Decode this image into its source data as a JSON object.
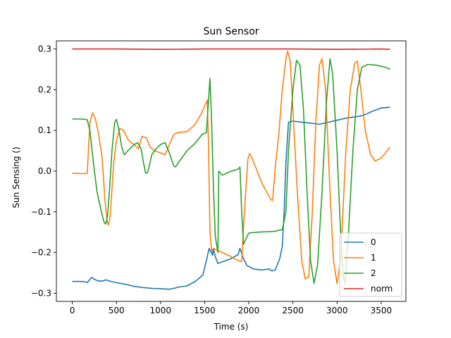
{
  "chart_data": {
    "type": "line",
    "title": "Sun Sensor",
    "xlabel": "Time (s)",
    "ylabel": "Sun Sensing ()",
    "xlim": [
      -180,
      3780
    ],
    "ylim": [
      -0.32,
      0.32
    ],
    "xticks": [
      0,
      500,
      1000,
      1500,
      2000,
      2500,
      3000,
      3500
    ],
    "yticks": [
      -0.3,
      -0.2,
      -0.1,
      0.0,
      0.1,
      0.2,
      0.3
    ],
    "xtick_labels": [
      "0",
      "500",
      "1000",
      "1500",
      "2000",
      "2500",
      "3000",
      "3500"
    ],
    "ytick_labels": [
      "−0.3",
      "−0.2",
      "−0.1",
      "0.0",
      "0.1",
      "0.2",
      "0.3"
    ],
    "grid": false,
    "legend_position": "lower-right",
    "series": [
      {
        "name": "0",
        "color": "#1f77b4",
        "points": [
          [
            0,
            -0.271
          ],
          [
            100,
            -0.271
          ],
          [
            150,
            -0.272
          ],
          [
            170,
            -0.274
          ],
          [
            200,
            -0.266
          ],
          [
            220,
            -0.261
          ],
          [
            250,
            -0.266
          ],
          [
            300,
            -0.27
          ],
          [
            350,
            -0.27
          ],
          [
            380,
            -0.267
          ],
          [
            420,
            -0.27
          ],
          [
            500,
            -0.274
          ],
          [
            600,
            -0.278
          ],
          [
            700,
            -0.283
          ],
          [
            800,
            -0.286
          ],
          [
            900,
            -0.288
          ],
          [
            1000,
            -0.289
          ],
          [
            1100,
            -0.29
          ],
          [
            1150,
            -0.288
          ],
          [
            1200,
            -0.285
          ],
          [
            1300,
            -0.282
          ],
          [
            1400,
            -0.27
          ],
          [
            1480,
            -0.255
          ],
          [
            1520,
            -0.22
          ],
          [
            1550,
            -0.19
          ],
          [
            1570,
            -0.198
          ],
          [
            1590,
            -0.207
          ],
          [
            1600,
            -0.19
          ],
          [
            1620,
            -0.21
          ],
          [
            1650,
            -0.227
          ],
          [
            1700,
            -0.223
          ],
          [
            1800,
            -0.215
          ],
          [
            1880,
            -0.205
          ],
          [
            1900,
            -0.19
          ],
          [
            1940,
            -0.215
          ],
          [
            1980,
            -0.232
          ],
          [
            2050,
            -0.24
          ],
          [
            2150,
            -0.243
          ],
          [
            2230,
            -0.24
          ],
          [
            2260,
            -0.245
          ],
          [
            2300,
            -0.243
          ],
          [
            2350,
            -0.215
          ],
          [
            2380,
            -0.185
          ],
          [
            2400,
            -0.1
          ],
          [
            2420,
            0.02
          ],
          [
            2450,
            0.12
          ],
          [
            2500,
            0.123
          ],
          [
            2600,
            0.12
          ],
          [
            2700,
            0.118
          ],
          [
            2800,
            0.115
          ],
          [
            2900,
            0.12
          ],
          [
            3000,
            0.125
          ],
          [
            3100,
            0.13
          ],
          [
            3200,
            0.133
          ],
          [
            3300,
            0.137
          ],
          [
            3400,
            0.147
          ],
          [
            3500,
            0.155
          ],
          [
            3600,
            0.157
          ]
        ]
      },
      {
        "name": "1",
        "color": "#ff7f0e",
        "points": [
          [
            0,
            -0.005
          ],
          [
            100,
            -0.006
          ],
          [
            150,
            -0.006
          ],
          [
            170,
            -0.005
          ],
          [
            200,
            0.12
          ],
          [
            230,
            0.143
          ],
          [
            260,
            0.13
          ],
          [
            300,
            0.09
          ],
          [
            340,
            0.03
          ],
          [
            370,
            -0.07
          ],
          [
            395,
            -0.123
          ],
          [
            410,
            -0.133
          ],
          [
            430,
            -0.11
          ],
          [
            470,
            0.02
          ],
          [
            500,
            0.075
          ],
          [
            540,
            0.105
          ],
          [
            580,
            0.1
          ],
          [
            640,
            0.075
          ],
          [
            700,
            0.065
          ],
          [
            750,
            0.055
          ],
          [
            790,
            0.085
          ],
          [
            840,
            0.082
          ],
          [
            880,
            0.06
          ],
          [
            930,
            0.05
          ],
          [
            1000,
            0.045
          ],
          [
            1050,
            0.04
          ],
          [
            1100,
            0.065
          ],
          [
            1150,
            0.09
          ],
          [
            1200,
            0.095
          ],
          [
            1300,
            0.097
          ],
          [
            1380,
            0.112
          ],
          [
            1420,
            0.125
          ],
          [
            1470,
            0.145
          ],
          [
            1510,
            0.165
          ],
          [
            1530,
            0.175
          ],
          [
            1545,
            0.05
          ],
          [
            1560,
            -0.15
          ],
          [
            1580,
            -0.197
          ],
          [
            1600,
            -0.19
          ],
          [
            1700,
            -0.2
          ],
          [
            1800,
            -0.21
          ],
          [
            1880,
            -0.22
          ],
          [
            1920,
            -0.222
          ],
          [
            1950,
            -0.1
          ],
          [
            1990,
            0.03
          ],
          [
            2010,
            0.043
          ],
          [
            2040,
            0.03
          ],
          [
            2150,
            -0.03
          ],
          [
            2250,
            -0.07
          ],
          [
            2270,
            -0.072
          ],
          [
            2300,
            0.01
          ],
          [
            2340,
            0.09
          ],
          [
            2380,
            0.2
          ],
          [
            2420,
            0.275
          ],
          [
            2440,
            0.295
          ],
          [
            2470,
            0.27
          ],
          [
            2500,
            0.15
          ],
          [
            2550,
            -0.05
          ],
          [
            2600,
            -0.22
          ],
          [
            2640,
            -0.265
          ],
          [
            2680,
            -0.26
          ],
          [
            2720,
            -0.1
          ],
          [
            2760,
            0.12
          ],
          [
            2800,
            0.26
          ],
          [
            2830,
            0.276
          ],
          [
            2870,
            0.2
          ],
          [
            2920,
            -0.05
          ],
          [
            2960,
            -0.22
          ],
          [
            3000,
            -0.276
          ],
          [
            3040,
            -0.22
          ],
          [
            3100,
            0.05
          ],
          [
            3150,
            0.2
          ],
          [
            3200,
            0.265
          ],
          [
            3230,
            0.27
          ],
          [
            3270,
            0.2
          ],
          [
            3320,
            0.1
          ],
          [
            3380,
            0.04
          ],
          [
            3430,
            0.025
          ],
          [
            3500,
            0.032
          ],
          [
            3550,
            0.045
          ],
          [
            3600,
            0.059
          ]
        ]
      },
      {
        "name": "2",
        "color": "#2ca02c",
        "points": [
          [
            0,
            0.128
          ],
          [
            100,
            0.128
          ],
          [
            150,
            0.127
          ],
          [
            170,
            0.126
          ],
          [
            200,
            0.1
          ],
          [
            240,
            0.02
          ],
          [
            280,
            -0.05
          ],
          [
            330,
            -0.1
          ],
          [
            360,
            -0.125
          ],
          [
            380,
            -0.13
          ],
          [
            400,
            -0.11
          ],
          [
            420,
            -0.05
          ],
          [
            450,
            0.05
          ],
          [
            480,
            0.12
          ],
          [
            500,
            0.127
          ],
          [
            530,
            0.1
          ],
          [
            560,
            0.06
          ],
          [
            590,
            0.04
          ],
          [
            630,
            0.05
          ],
          [
            700,
            0.065
          ],
          [
            740,
            0.07
          ],
          [
            780,
            0.055
          ],
          [
            800,
            0.03
          ],
          [
            830,
            -0.005
          ],
          [
            850,
            -0.005
          ],
          [
            870,
            0.01
          ],
          [
            900,
            0.04
          ],
          [
            950,
            0.055
          ],
          [
            1000,
            0.065
          ],
          [
            1050,
            0.07
          ],
          [
            1100,
            0.045
          ],
          [
            1150,
            0.013
          ],
          [
            1170,
            0.01
          ],
          [
            1200,
            0.02
          ],
          [
            1300,
            0.05
          ],
          [
            1400,
            0.07
          ],
          [
            1470,
            0.09
          ],
          [
            1520,
            0.095
          ],
          [
            1540,
            0.16
          ],
          [
            1560,
            0.228
          ],
          [
            1575,
            0.15
          ],
          [
            1600,
            -0.04
          ],
          [
            1620,
            -0.16
          ],
          [
            1650,
            -0.2
          ],
          [
            1660,
            0.0
          ],
          [
            1700,
            -0.01
          ],
          [
            1800,
            0.0
          ],
          [
            1850,
            0.003
          ],
          [
            1880,
            0.005
          ],
          [
            1900,
            0.01
          ],
          [
            1920,
            -0.1
          ],
          [
            1940,
            -0.18
          ],
          [
            1960,
            -0.17
          ],
          [
            2000,
            -0.152
          ],
          [
            2100,
            -0.15
          ],
          [
            2200,
            -0.149
          ],
          [
            2300,
            -0.148
          ],
          [
            2340,
            -0.145
          ],
          [
            2380,
            -0.144
          ],
          [
            2420,
            -0.1
          ],
          [
            2450,
            0.05
          ],
          [
            2500,
            0.2
          ],
          [
            2540,
            0.272
          ],
          [
            2580,
            0.26
          ],
          [
            2620,
            0.15
          ],
          [
            2660,
            -0.05
          ],
          [
            2700,
            -0.22
          ],
          [
            2740,
            -0.276
          ],
          [
            2780,
            -0.23
          ],
          [
            2830,
            -0.05
          ],
          [
            2880,
            0.17
          ],
          [
            2920,
            0.276
          ],
          [
            2950,
            0.24
          ],
          [
            3000,
            0.05
          ],
          [
            3040,
            -0.15
          ],
          [
            3070,
            -0.26
          ],
          [
            3090,
            -0.275
          ],
          [
            3130,
            -0.15
          ],
          [
            3180,
            0.05
          ],
          [
            3230,
            0.2
          ],
          [
            3280,
            0.255
          ],
          [
            3350,
            0.262
          ],
          [
            3450,
            0.26
          ],
          [
            3550,
            0.255
          ],
          [
            3600,
            0.25
          ]
        ]
      },
      {
        "name": "norm",
        "color": "#d62728",
        "points": [
          [
            0,
            0.3
          ],
          [
            500,
            0.3
          ],
          [
            1000,
            0.299
          ],
          [
            1500,
            0.3
          ],
          [
            2000,
            0.3
          ],
          [
            2500,
            0.3
          ],
          [
            3000,
            0.299
          ],
          [
            3500,
            0.3
          ],
          [
            3600,
            0.299
          ]
        ]
      }
    ]
  }
}
